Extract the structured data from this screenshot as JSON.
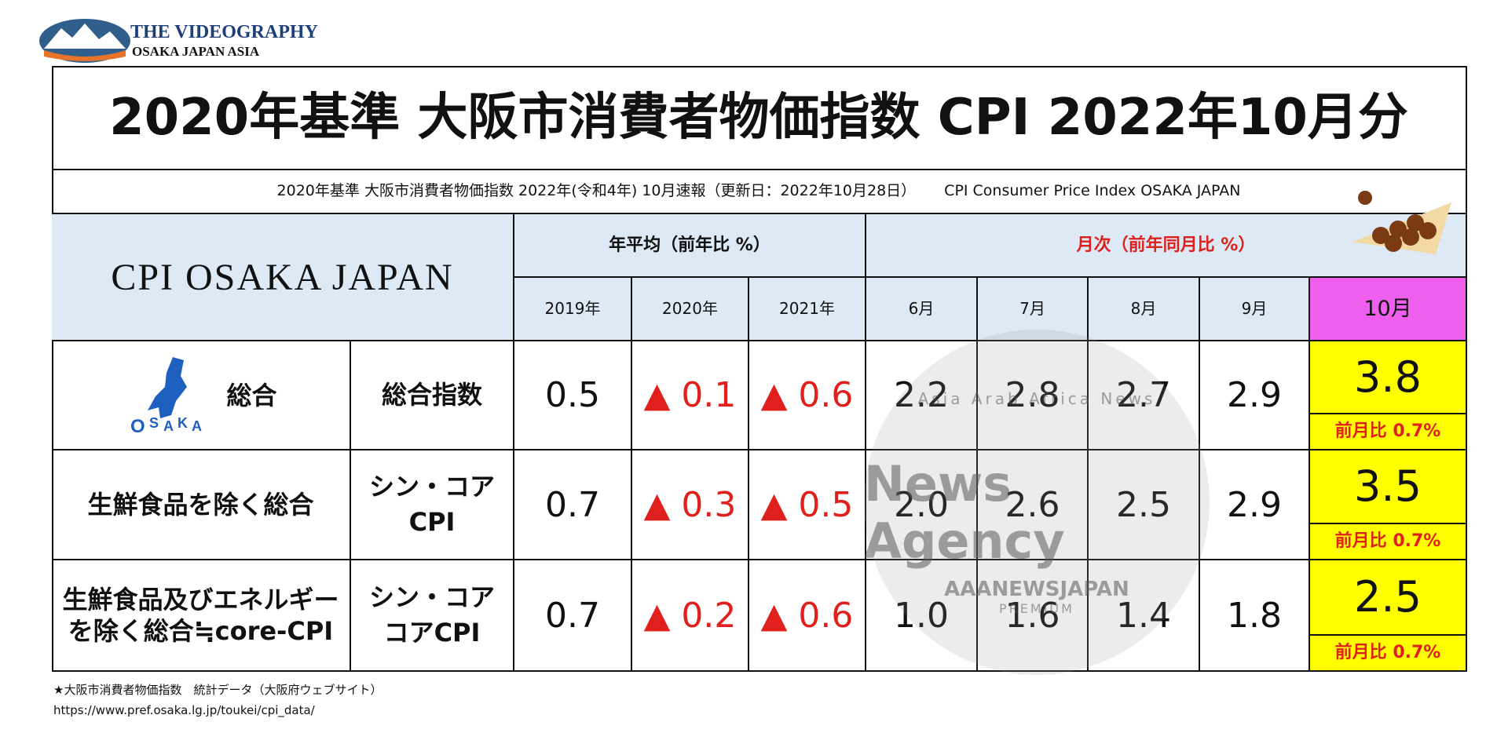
{
  "logo": {
    "title": "THE VIDEOGRAPHY",
    "subtitle": "OSAKA JAPAN ASIA"
  },
  "header": {
    "title": "2020年基準 大阪市消費者物価指数 CPI 2022年10月分",
    "subtitle": "2020年基準 大阪市消費者物価指数 2022年(令和4年) 10月速報（更新日：2022年10月28日）",
    "subtitle_en": "CPI Consumer Price Index OSAKA JAPAN"
  },
  "table": {
    "brand": "CPI OSAKA JAPAN",
    "groups": [
      "年平均（前年比 %）",
      "月次（前年同月比 %）"
    ],
    "columns": [
      "2019年",
      "2020年",
      "2021年",
      "6月",
      "7月",
      "8月",
      "9月",
      "10月"
    ],
    "rows": [
      {
        "label": [
          "総合"
        ],
        "sublabel": [
          "総合指数"
        ],
        "values": [
          "0.5",
          "▲ 0.1",
          "▲ 0.6",
          "2.2",
          "2.8",
          "2.7",
          "2.9",
          "3.8"
        ],
        "note": "前月比 0.7%"
      },
      {
        "label": [
          "生鮮食品を除く総合"
        ],
        "sublabel": [
          "シン・コア",
          "CPI"
        ],
        "values": [
          "0.7",
          "▲ 0.3",
          "▲ 0.5",
          "2.0",
          "2.6",
          "2.5",
          "2.9",
          "3.5"
        ],
        "note": "前月比 0.7%"
      },
      {
        "label": [
          "生鮮食品及びエネルギー",
          "を除く総合≒core-CPI"
        ],
        "sublabel": [
          "シン・コア",
          "コアCPI"
        ],
        "values": [
          "0.7",
          "▲ 0.2",
          "▲ 0.6",
          "1.0",
          "1.6",
          "1.4",
          "1.8",
          "2.5"
        ],
        "note": "前月比 0.7%"
      }
    ]
  },
  "watermark": {
    "top": "Asia Arab Africa News",
    "main": "News Agency",
    "ribbon": "AAANEWSJAPAN",
    "bottom": "PREMIUM"
  },
  "footer": {
    "source": "★大阪市消費者物価指数　統計データ（大阪府ウェブサイト）",
    "url": "https://www.pref.osaka.lg.jp/toukei/cpi_data/"
  }
}
